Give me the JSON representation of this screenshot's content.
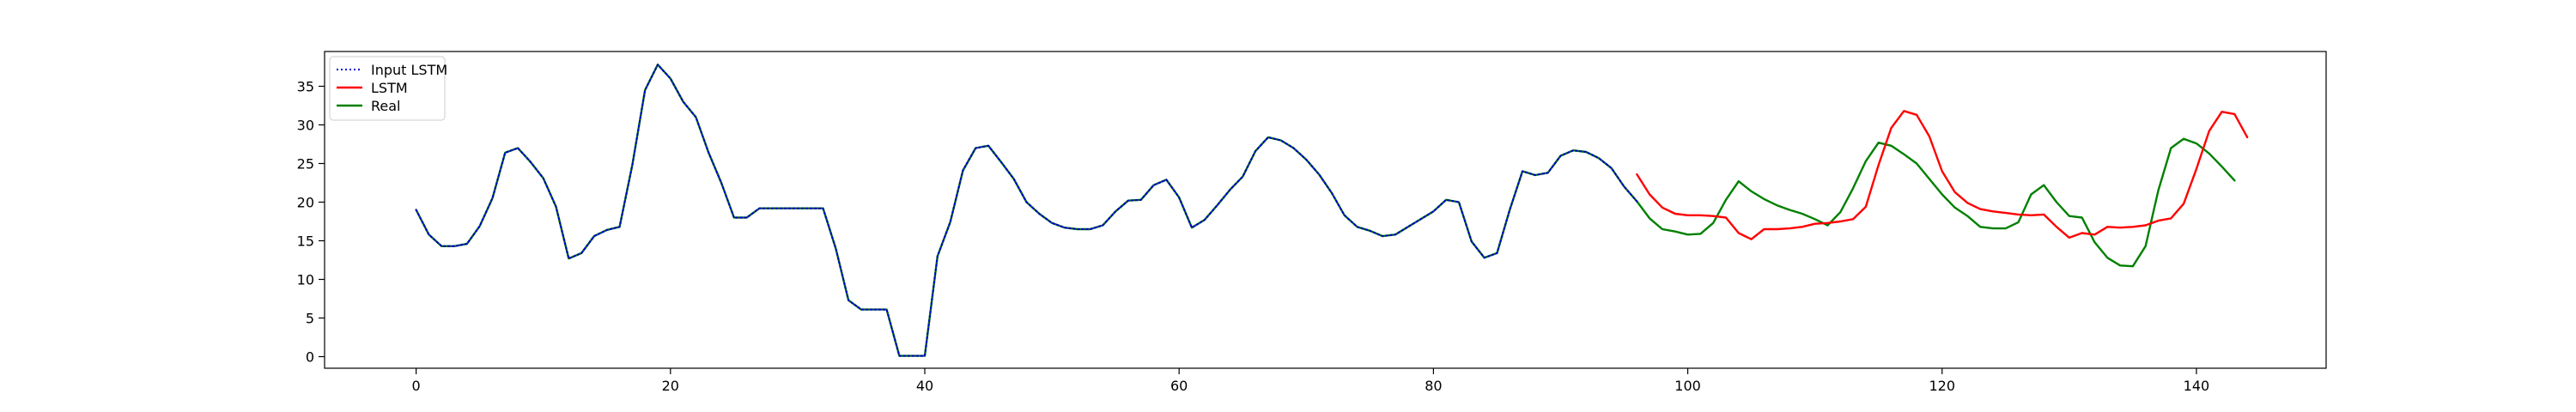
{
  "chart_data": {
    "type": "line",
    "title": "",
    "xlabel": "",
    "ylabel": "",
    "xlim": [
      -7.2,
      150.2
    ],
    "ylim": [
      -1.5,
      39.5
    ],
    "xticks": [
      0,
      20,
      40,
      60,
      80,
      100,
      120,
      140
    ],
    "yticks": [
      0,
      5,
      10,
      15,
      20,
      25,
      30,
      35
    ],
    "grid": false,
    "legend_position": "top-left",
    "series": [
      {
        "name": "Input LSTM",
        "color": "#0000cc",
        "style": "dotted",
        "x_start": 0,
        "values": [
          19.0,
          15.8,
          14.3,
          14.3,
          14.6,
          16.9,
          20.5,
          26.4,
          27.0,
          25.2,
          23.1,
          19.4,
          12.7,
          13.4,
          15.6,
          16.4,
          16.8,
          24.8,
          34.5,
          37.8,
          36.0,
          33.0,
          31.0,
          26.4,
          22.5,
          18.0,
          18.0,
          19.2,
          19.2,
          19.2,
          19.2,
          19.2,
          19.2,
          14.0,
          7.3,
          6.1,
          6.1,
          6.1,
          0.1,
          0.1,
          0.1,
          13.0,
          17.4,
          24.1,
          27.0,
          27.3,
          25.2,
          23.0,
          20.0,
          18.5,
          17.3,
          16.7,
          16.5,
          16.5,
          17.0,
          18.8,
          20.2,
          20.3,
          22.2,
          22.9,
          20.6,
          16.7,
          17.7,
          19.6,
          21.6,
          23.3,
          26.6,
          28.4,
          28.0,
          27.0,
          25.5,
          23.6,
          21.2,
          18.3,
          16.8,
          16.3,
          15.6,
          15.8,
          16.8,
          17.8,
          18.8,
          20.3,
          20.0,
          14.9,
          12.8,
          13.4,
          19.0,
          24.0,
          23.5,
          23.8,
          26.0,
          26.7,
          26.5,
          25.7,
          24.4,
          22.0,
          20.1
        ]
      },
      {
        "name": "LSTM",
        "color": "#ff0000",
        "style": "solid",
        "x_start": 96,
        "values": [
          23.6,
          21.0,
          19.3,
          18.5,
          18.3,
          18.3,
          18.2,
          18.0,
          16.0,
          15.2,
          16.5,
          16.5,
          16.6,
          16.8,
          17.2,
          17.3,
          17.5,
          17.8,
          19.4,
          24.8,
          29.6,
          31.8,
          31.3,
          28.5,
          24.0,
          21.3,
          19.9,
          19.1,
          18.8,
          18.6,
          18.4,
          18.3,
          18.4,
          16.8,
          15.4,
          16.0,
          15.8,
          16.8,
          16.7,
          16.8,
          17.0,
          17.6,
          17.9,
          19.8,
          24.3,
          29.2,
          31.7,
          31.4,
          28.4
        ]
      },
      {
        "name": "Real",
        "color": "#008000",
        "style": "solid",
        "x_start": 0,
        "values": [
          19.0,
          15.8,
          14.3,
          14.3,
          14.6,
          16.9,
          20.5,
          26.4,
          27.0,
          25.2,
          23.1,
          19.4,
          12.7,
          13.4,
          15.6,
          16.4,
          16.8,
          24.8,
          34.5,
          37.8,
          36.0,
          33.0,
          31.0,
          26.4,
          22.5,
          18.0,
          18.0,
          19.2,
          19.2,
          19.2,
          19.2,
          19.2,
          19.2,
          14.0,
          7.3,
          6.1,
          6.1,
          6.1,
          0.1,
          0.1,
          0.1,
          13.0,
          17.4,
          24.1,
          27.0,
          27.3,
          25.2,
          23.0,
          20.0,
          18.5,
          17.3,
          16.7,
          16.5,
          16.5,
          17.0,
          18.8,
          20.2,
          20.3,
          22.2,
          22.9,
          20.6,
          16.7,
          17.7,
          19.6,
          21.6,
          23.3,
          26.6,
          28.4,
          28.0,
          27.0,
          25.5,
          23.6,
          21.2,
          18.3,
          16.8,
          16.3,
          15.6,
          15.8,
          16.8,
          17.8,
          18.8,
          20.3,
          20.0,
          14.9,
          12.8,
          13.4,
          19.0,
          24.0,
          23.5,
          23.8,
          26.0,
          26.7,
          26.5,
          25.7,
          24.4,
          22.0,
          20.1,
          17.9,
          16.5,
          16.2,
          15.8,
          15.9,
          17.3,
          20.3,
          22.7,
          21.4,
          20.4,
          19.6,
          19.0,
          18.5,
          17.8,
          17.0,
          18.7,
          21.8,
          25.3,
          27.7,
          27.3,
          26.2,
          25.0,
          23.0,
          21.0,
          19.3,
          18.2,
          16.8,
          16.6,
          16.6,
          17.4,
          21.0,
          22.2,
          20.0,
          18.2,
          18.0,
          14.8,
          12.8,
          11.8,
          11.7,
          14.3,
          21.5,
          27.0,
          28.2,
          27.6,
          26.3,
          24.6,
          22.8
        ]
      }
    ]
  }
}
